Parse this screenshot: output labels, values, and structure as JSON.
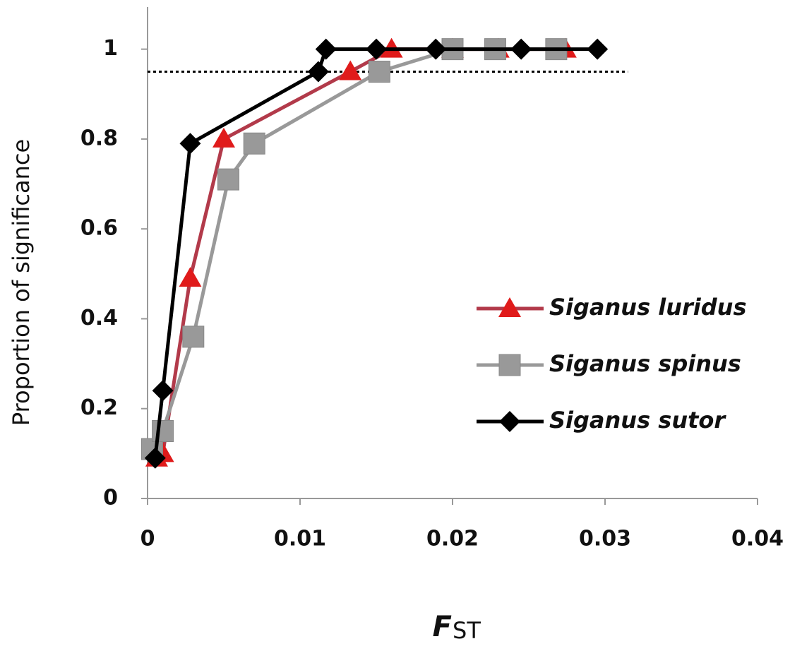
{
  "chart_data": {
    "type": "line",
    "ylabel": "Proportion of significance",
    "xlabel": {
      "main": "F",
      "subscript": "ST"
    },
    "xlim": [
      0,
      0.04
    ],
    "xticks": [
      0,
      0.01,
      0.02,
      0.03,
      0.04
    ],
    "ylim": [
      0,
      1.1
    ],
    "yticks": [
      0,
      0.2,
      0.4,
      0.6,
      0.8,
      1
    ],
    "grid": false,
    "legend_position": "right",
    "hline": {
      "y": 0.95,
      "x_end": 0.0315,
      "style": "dotted",
      "color": "#000000"
    },
    "series": [
      {
        "name": "Siganus luridus",
        "color": "#b23a4a",
        "marker_color": "#e01b1b",
        "marker": "triangle",
        "x": [
          0.0006,
          0.001,
          0.0028,
          0.005,
          0.0133,
          0.016,
          0.02,
          0.023,
          0.0274
        ],
        "values": [
          0.09,
          0.1,
          0.49,
          0.8,
          0.95,
          1,
          1,
          1,
          1
        ]
      },
      {
        "name": "Siganus spinus",
        "color": "#999999",
        "marker_color": "#999999",
        "marker": "square",
        "x": [
          0.0003,
          0.001,
          0.003,
          0.0053,
          0.007,
          0.0152,
          0.02,
          0.0228,
          0.0268
        ],
        "values": [
          0.11,
          0.15,
          0.36,
          0.71,
          0.79,
          0.95,
          1,
          1,
          1
        ]
      },
      {
        "name": "Siganus sutor",
        "color": "#000000",
        "marker_color": "#000000",
        "marker": "diamond",
        "x": [
          0.0005,
          0.001,
          0.0028,
          0.0112,
          0.0117,
          0.015,
          0.0189,
          0.0245,
          0.0295
        ],
        "values": [
          0.09,
          0.24,
          0.79,
          0.95,
          1,
          1,
          1,
          1,
          1
        ]
      }
    ]
  }
}
